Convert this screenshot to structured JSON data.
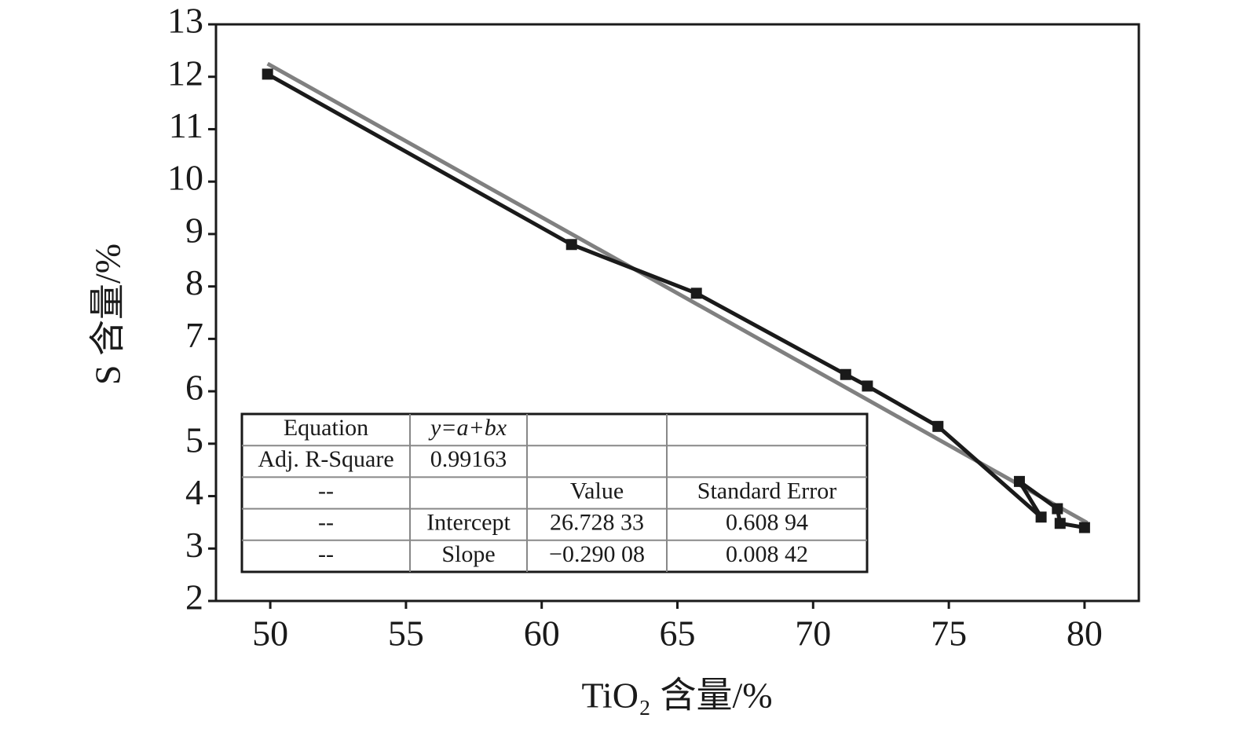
{
  "chart_data": {
    "type": "line",
    "x_label": "TiO₂ 含量/%",
    "y_label": "S 含量/%",
    "xlim": [
      48,
      82
    ],
    "xticks": [
      50,
      55,
      60,
      65,
      70,
      75,
      80
    ],
    "ylim": [
      2,
      13
    ],
    "yticks": [
      2,
      3,
      4,
      5,
      6,
      7,
      8,
      9,
      10,
      11,
      12,
      13
    ],
    "series": [
      {
        "color": "#1a1a1a",
        "marker": "square",
        "x": [
          49.9,
          61.1,
          65.7,
          71.2,
          72.0,
          74.6,
          78.4,
          77.6,
          79.0,
          79.1,
          80.0
        ],
        "values": [
          12.05,
          8.8,
          7.87,
          6.32,
          6.1,
          5.33,
          3.6,
          4.28,
          3.76,
          3.48,
          3.4
        ]
      },
      {
        "color": "#808080",
        "marker": "none",
        "x": [
          49.9,
          80.1
        ],
        "values": [
          12.25,
          3.49
        ]
      }
    ],
    "table": {
      "rows": [
        [
          "Equation",
          "y=a+bx",
          null,
          null
        ],
        [
          "Adj. R-Square",
          "0.99163",
          null,
          null
        ],
        [
          "--",
          null,
          "Value",
          "Standard Error"
        ],
        [
          "--",
          "Intercept",
          "26.728 33",
          "0.608 94"
        ],
        [
          "--",
          "Slope",
          "−0.290 08",
          "0.008 42"
        ]
      ]
    }
  }
}
